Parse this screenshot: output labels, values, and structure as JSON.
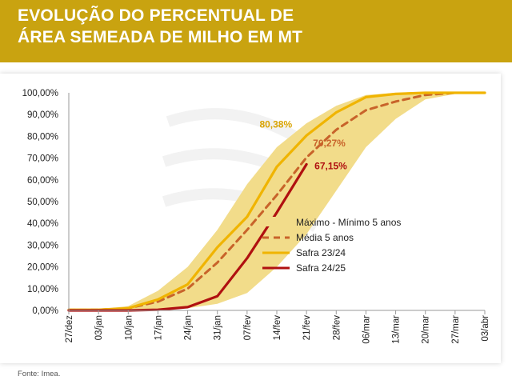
{
  "header": {
    "title_line1": "EVOLUÇÃO DO PERCENTUAL DE",
    "title_line2": "ÁREA SEMEADA DE MILHO EM MT",
    "background_color": "#c9a310"
  },
  "source": "Fonte: Imea.",
  "chart_data": {
    "type": "line",
    "categories": [
      "27/dez",
      "03/jan",
      "10/jan",
      "17/jan",
      "24/jan",
      "31/jan",
      "07/fev",
      "14/fev",
      "21/fev",
      "28/fev",
      "06/mar",
      "13/mar",
      "20/mar",
      "27/mar",
      "03/abr"
    ],
    "y_tick_labels": [
      "0,00%",
      "10,00%",
      "20,00%",
      "30,00%",
      "40,00%",
      "50,00%",
      "60,00%",
      "70,00%",
      "80,00%",
      "90,00%",
      "100,00%"
    ],
    "ylim": [
      0,
      100
    ],
    "grid": false,
    "legend_placement": "bottom-right",
    "band": {
      "name": "Máximo - Mínimo 5 anos",
      "color": "#f2dc8a",
      "max": [
        0.5,
        0.5,
        2,
        9,
        20,
        37,
        58,
        75,
        86,
        94,
        99,
        100,
        100,
        100,
        100
      ],
      "min": [
        0,
        0,
        0,
        0.5,
        1,
        3,
        8,
        20,
        35,
        55,
        75,
        88,
        97,
        99.5,
        100
      ]
    },
    "series": [
      {
        "name": "Média 5 anos",
        "color": "#c8632a",
        "style": "dashed",
        "values": [
          0.2,
          0.3,
          1,
          4,
          10,
          22,
          37,
          53,
          70.27,
          83,
          92,
          96,
          99,
          100,
          100
        ]
      },
      {
        "name": "Safra 23/24",
        "color": "#f0b400",
        "style": "solid",
        "values": [
          0.3,
          0.3,
          1,
          5,
          12,
          29,
          43,
          66,
          80.38,
          91,
          98,
          99.5,
          100,
          100,
          100
        ]
      },
      {
        "name": "Safra 24/25",
        "color": "#b01010",
        "style": "solid",
        "values": [
          0,
          0,
          0,
          0.3,
          1.5,
          6.5,
          24,
          45,
          67.15,
          null,
          null,
          null,
          null,
          null,
          null
        ]
      }
    ],
    "annotations": [
      {
        "text": "80,38%",
        "series": "Safra 23/24",
        "category": "21/fev",
        "color": "#d9a300"
      },
      {
        "text": "70,27%",
        "series": "Média 5 anos",
        "category": "21/fev",
        "color": "#c8632a"
      },
      {
        "text": "67,15%",
        "series": "Safra 24/25",
        "category": "21/fev",
        "color": "#b01010"
      }
    ]
  }
}
